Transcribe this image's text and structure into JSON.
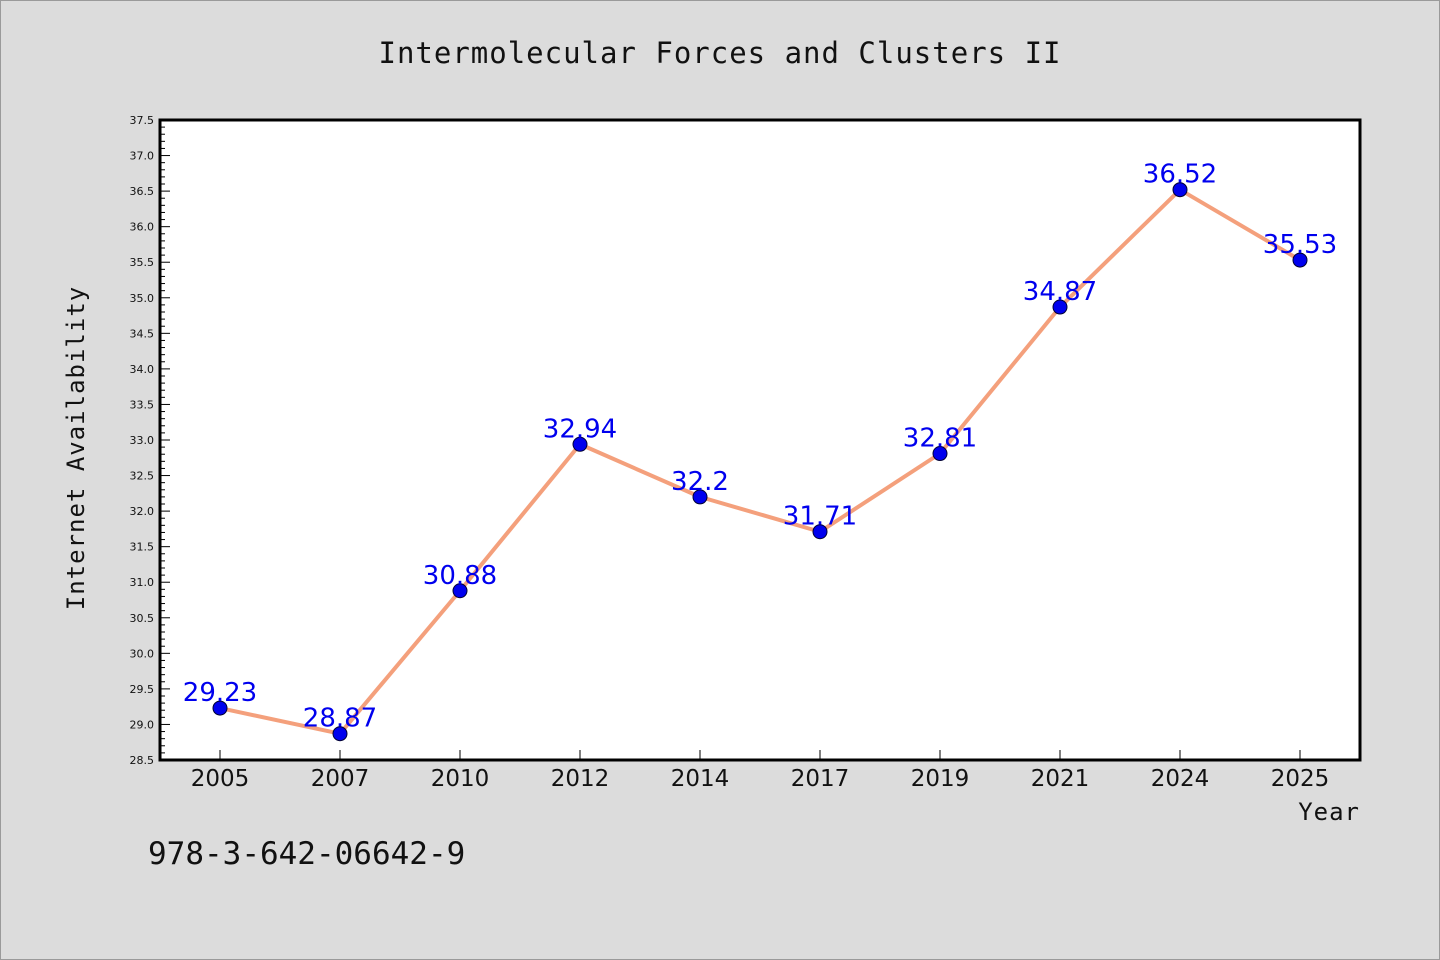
{
  "chart_data": {
    "type": "line",
    "title": "Intermolecular Forces and Clusters II",
    "xlabel": "Year",
    "ylabel": "Internet Availability",
    "categories": [
      "2005",
      "2007",
      "2010",
      "2012",
      "2014",
      "2017",
      "2019",
      "2021",
      "2024",
      "2025"
    ],
    "series": [
      {
        "values": [
          29.23,
          28.87,
          30.88,
          32.94,
          32.2,
          31.71,
          32.81,
          34.87,
          36.52,
          35.53
        ],
        "data_labels": [
          "29.23",
          "28.87",
          "30.88",
          "32.94",
          "32.2",
          "31.71",
          "32.81",
          "34.87",
          "36.52",
          "35.53"
        ]
      }
    ],
    "ylim": [
      28.5,
      37.5
    ],
    "yticks": [
      "28.5",
      "29.0",
      "29.5",
      "30.0",
      "30.5",
      "31.0",
      "31.5",
      "32.0",
      "32.5",
      "33.0",
      "33.5",
      "34.0",
      "34.5",
      "35.0",
      "35.5",
      "36.0",
      "36.5",
      "37.0",
      "37.5"
    ],
    "grid": false,
    "legend": "none",
    "colors": {
      "line": "#f4a07c",
      "marker": "#0000ee",
      "data_label": "#0000ee",
      "background": "#dcdcdc",
      "plot_background": "#ffffff"
    }
  },
  "footer": {
    "isbn": "978-3-642-06642-9"
  }
}
